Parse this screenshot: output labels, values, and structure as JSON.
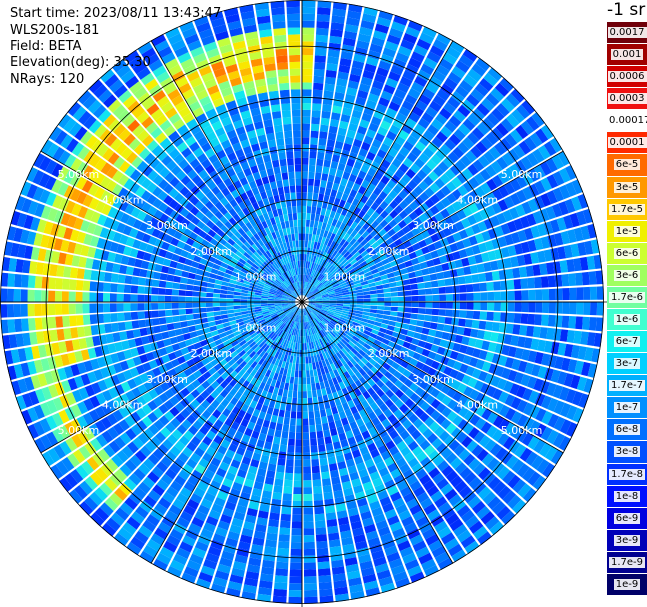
{
  "header": {
    "start_time": "Start time: 2023/08/11 13:43:47",
    "instrument": "WLS200s-181",
    "field": "Field: BETA",
    "elevation": "Elevation(deg): 35.30",
    "nrays": "NRays: 120"
  },
  "chart_data": {
    "type": "heatmap",
    "projection": "polar",
    "title": "",
    "n_rays": 120,
    "elevation_deg": 35.3,
    "range_rings_km": [
      1.0,
      2.0,
      3.0,
      4.0,
      5.0
    ],
    "range_ring_labels": [
      "1.00km",
      "2.00km",
      "3.00km",
      "4.00km",
      "5.00km"
    ],
    "max_range_km": 5.9,
    "colorbar": {
      "unit": "-1 sr",
      "scale": "log",
      "vmin": 1e-09,
      "vmax": 0.0017,
      "tick_labels": [
        "0.0017",
        "0.001",
        "0.0006",
        "0.0003",
        "0.00017",
        "0.0001",
        "6e-5",
        "3e-5",
        "1.7e-5",
        "1e-5",
        "6e-6",
        "3e-6",
        "1.7e-6",
        "1e-6",
        "6e-7",
        "3e-7",
        "1.7e-7",
        "1e-7",
        "6e-8",
        "3e-8",
        "1.7e-8",
        "1e-8",
        "6e-9",
        "3e-9",
        "1.7e-9",
        "1e-9"
      ],
      "colors": [
        "#70000a",
        "#a00000",
        "#d00000",
        "#f01010",
        "#ffffff",
        "#ff2a00",
        "#ff6a00",
        "#ff9800",
        "#ffc800",
        "#f0f000",
        "#ccff30",
        "#a0ff60",
        "#70ffa0",
        "#40ffd0",
        "#10f0f0",
        "#00d0ff",
        "#00b0ff",
        "#0090ff",
        "#0070ff",
        "#0050ff",
        "#0030ff",
        "#0010ff",
        "#0000e0",
        "#0000b8",
        "#000090",
        "#000068"
      ]
    },
    "features": [
      {
        "name": "enhanced backscatter arc",
        "range_km": [
          4.1,
          5.4
        ],
        "azimuth_deg": [
          195,
          300
        ],
        "peak_value": 3e-05
      },
      {
        "name": "moderate return band",
        "range_km": [
          3.4,
          4.2
        ],
        "azimuth_deg": [
          0,
          360
        ],
        "peak_value": 1.7e-07
      },
      {
        "name": "bright patch",
        "range_km": [
          4.8,
          5.5
        ],
        "azimuth_deg": [
          160,
          200
        ],
        "peak_value": 1e-05
      }
    ],
    "background_value": 3e-08,
    "grid": true,
    "spokes_deg": [
      0,
      30,
      60,
      90,
      120,
      150,
      180,
      210,
      240,
      270,
      300,
      330
    ]
  }
}
